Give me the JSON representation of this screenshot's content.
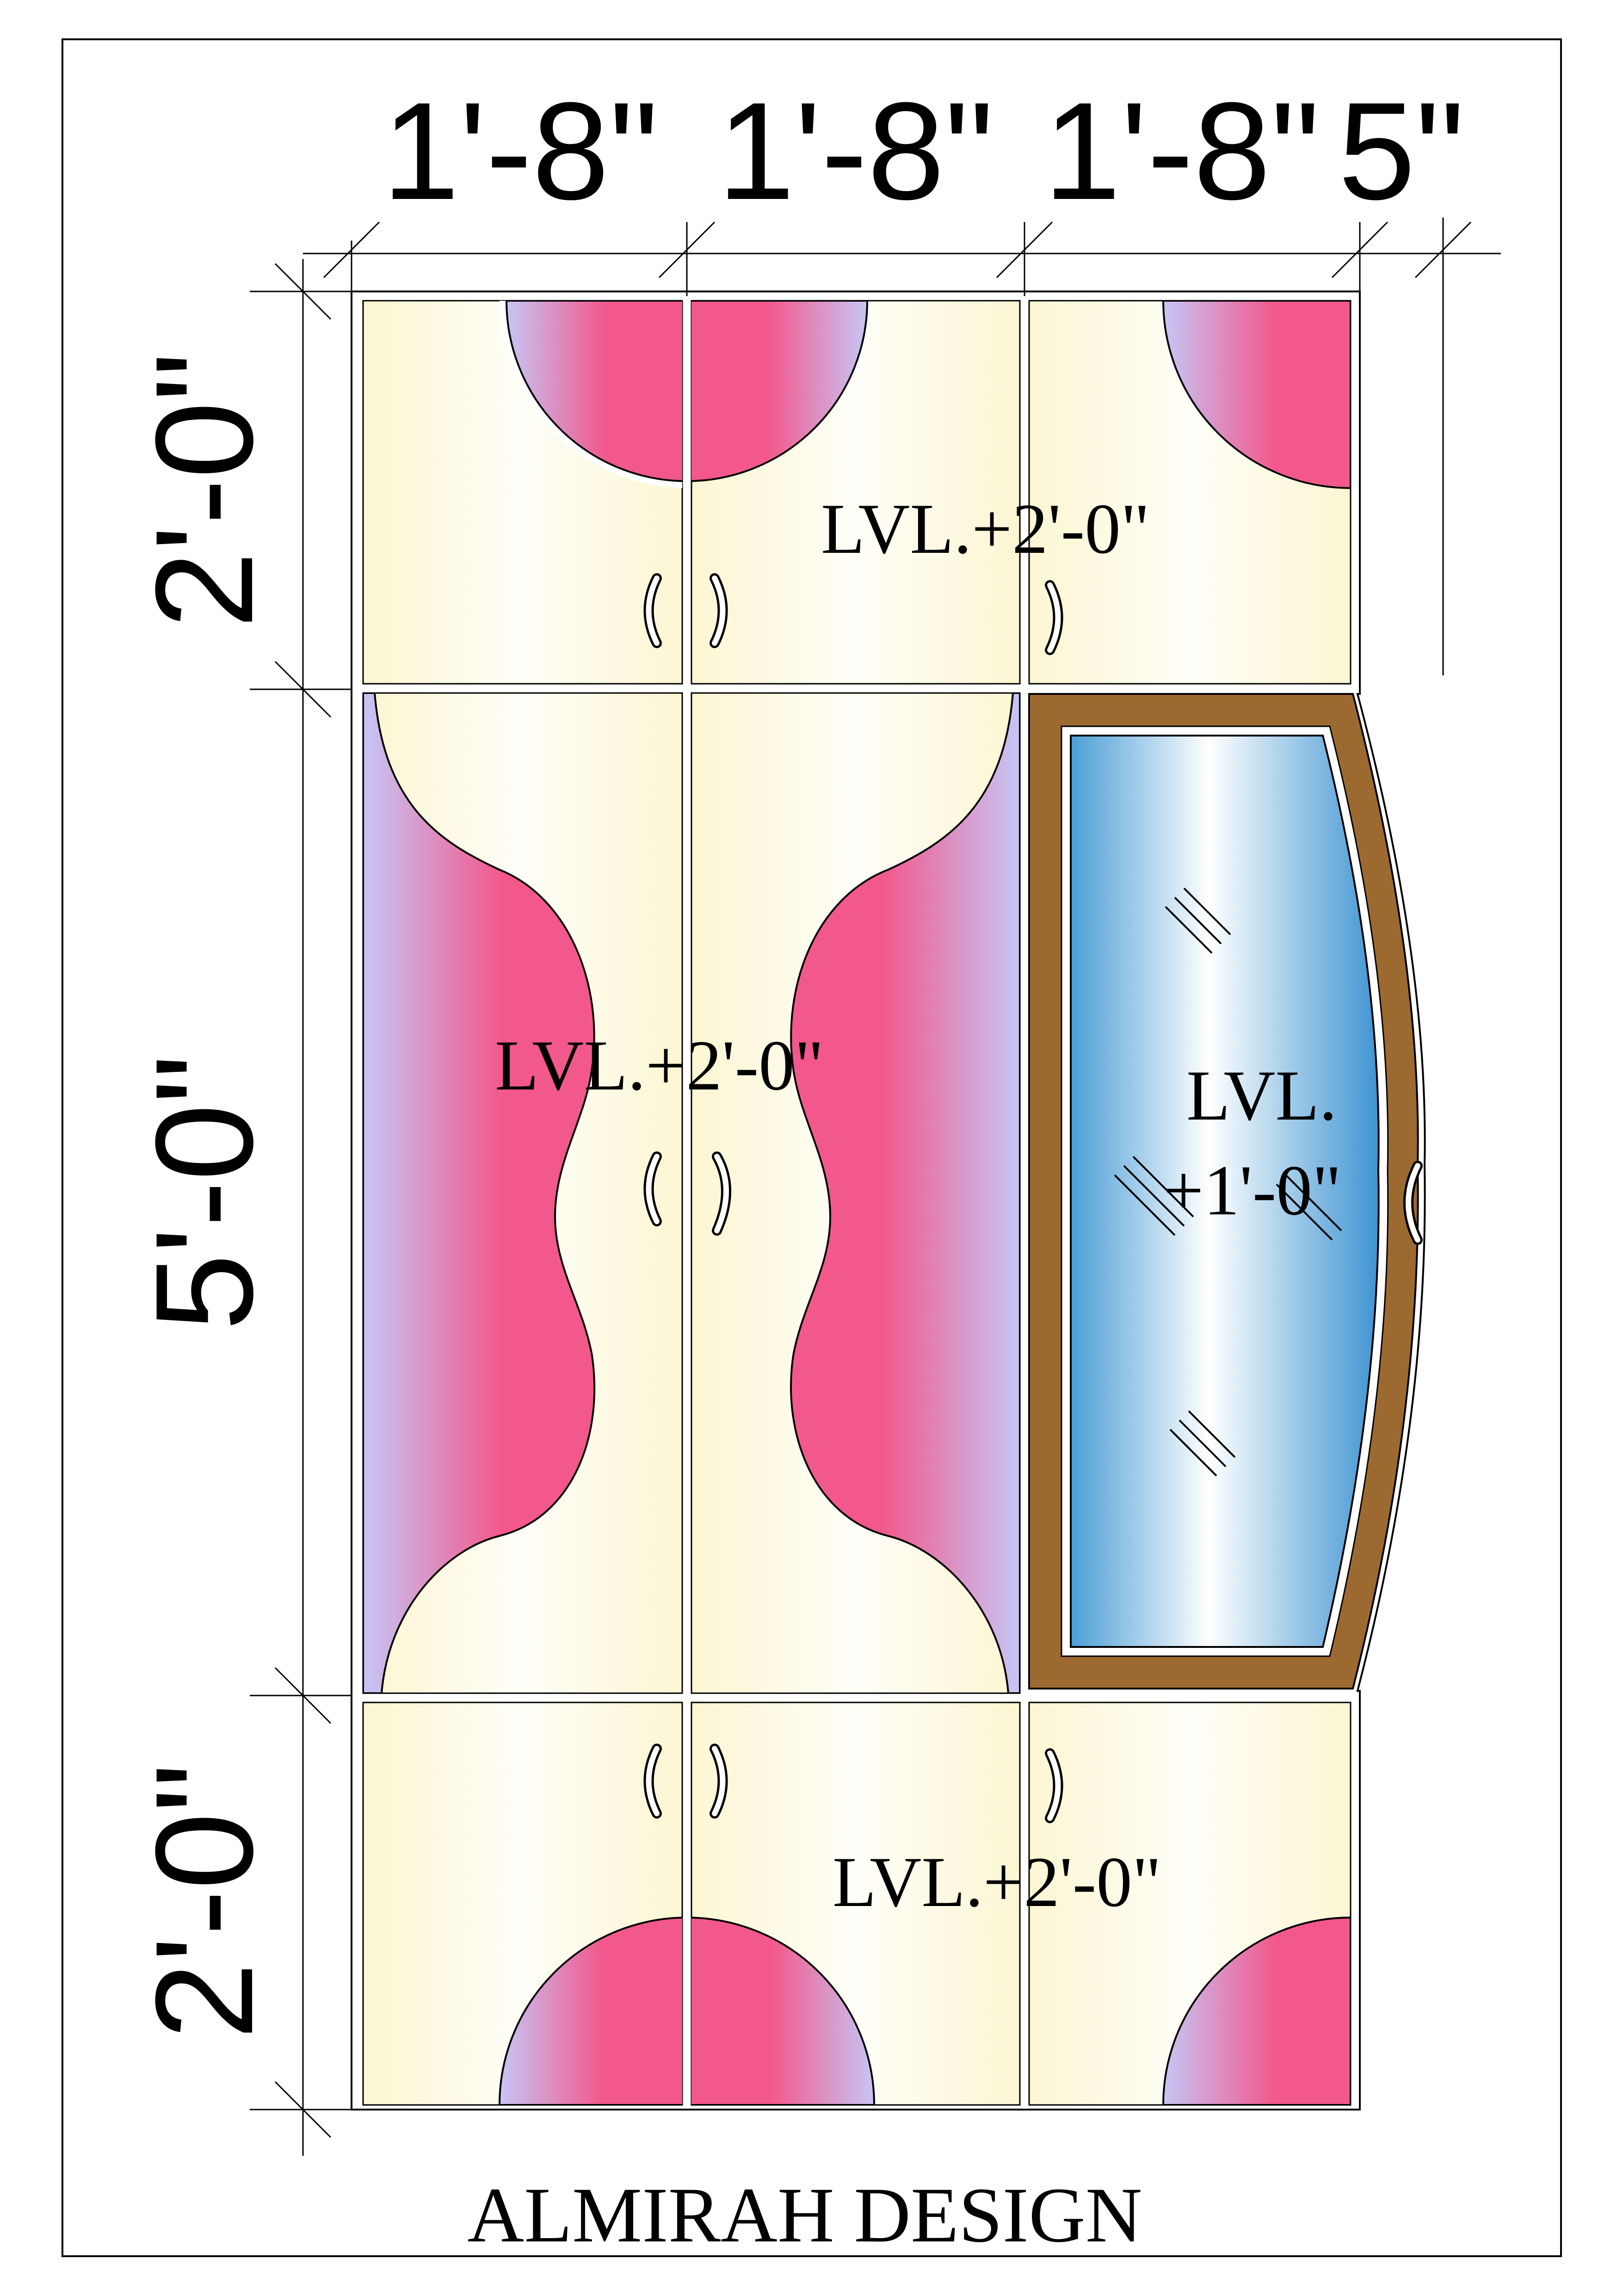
{
  "title": "ALMIRAH DESIGN",
  "dimensions": {
    "widths": [
      "1'-8\"",
      "1'-8\"",
      "1'-8\"",
      "5\""
    ],
    "heights": [
      "2'-0\"",
      "5'-0\"",
      "2'-0\""
    ]
  },
  "levels": {
    "loft_top": "LVL.+2'-0\"",
    "wardrobe_middle": "LVL.+2'-0\"",
    "mirror_line1": "LVL.",
    "mirror_line2": "+1'-0\"",
    "loft_bottom": "LVL.+2'-0\""
  },
  "colors": {
    "cream_light": "#fffdf2",
    "cream": "#fcf6d2",
    "pink": "#f2588c",
    "lavender": "#c6c6f6",
    "mirror_blue": "#4b9ed6",
    "frame_brown": "#9c6a30"
  }
}
